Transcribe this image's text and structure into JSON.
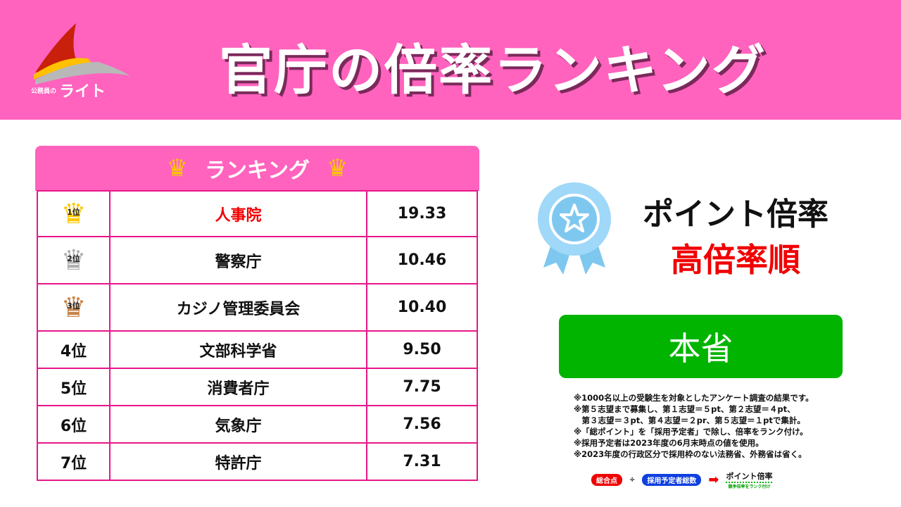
{
  "header": {
    "title": "官庁の倍率ランキング",
    "logo": {
      "small": "公務員の",
      "big": "ライト"
    }
  },
  "table": {
    "heading": "ランキング",
    "rows": [
      {
        "rank": "1位",
        "name": "人事院",
        "value": "19.33",
        "crown": "gold"
      },
      {
        "rank": "2位",
        "name": "警察庁",
        "value": "10.46",
        "crown": "silver"
      },
      {
        "rank": "3位",
        "name": "カジノ管理委員会",
        "value": "10.40",
        "crown": "bronze"
      },
      {
        "rank": "4位",
        "name": "文部科学省",
        "value": "9.50"
      },
      {
        "rank": "5位",
        "name": "消費者庁",
        "value": "7.75"
      },
      {
        "rank": "6位",
        "name": "気象庁",
        "value": "7.56"
      },
      {
        "rank": "7位",
        "name": "特許庁",
        "value": "7.31"
      }
    ]
  },
  "right": {
    "title": "ポイント倍率",
    "subtitle": "高倍率順",
    "button": "本省",
    "notes": [
      "※1000名以上の受験生を対象としたアンケート調査の結果です。",
      "※第５志望まで募集し、第１志望＝５pt、第２志望＝４pt、",
      "　第３志望＝３pt、第４志望＝２pr、第５志望＝１ptで集計。",
      "※「総ポイント」を「採用予定者」で除し、倍率をランク付け。",
      "※採用予定者は2023年度の6月末時点の値を使用。",
      "※2023年度の行政区分で採用枠のない法務省、外務省は省く。"
    ],
    "formula": {
      "a": "総合点",
      "op": "÷",
      "b": "採用予定者総数",
      "result": "ポイント倍率",
      "result_sub": "競争倍率をランク付け"
    }
  },
  "colors": {
    "pink": "#FF63BE",
    "border": "#E8168A",
    "red": "#F00000",
    "green": "#00B400",
    "blue": "#1040E0",
    "gold": "#FFC800",
    "silver": "#B0B0B0",
    "bronze": "#C8844A"
  }
}
